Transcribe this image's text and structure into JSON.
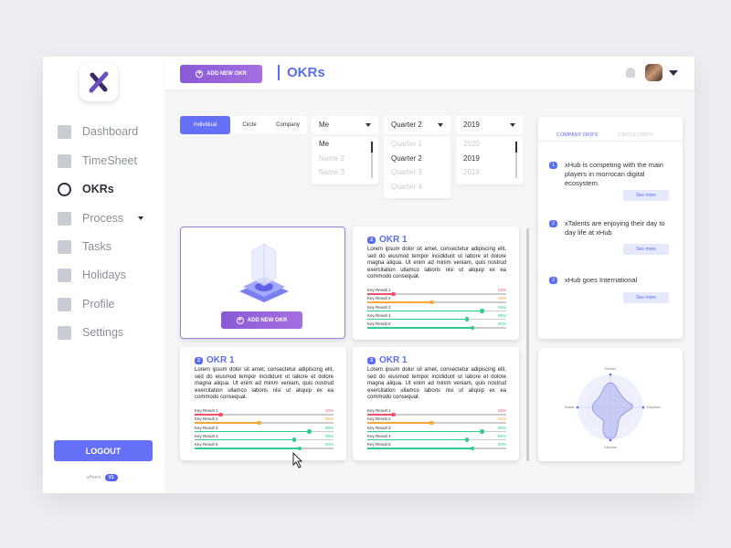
{
  "sidebar": {
    "items": [
      {
        "label": "Dashboard",
        "icon": "dashboard-icon"
      },
      {
        "label": "TimeSheet",
        "icon": "timesheet-icon"
      },
      {
        "label": "OKRs",
        "icon": "target-icon",
        "active": true
      },
      {
        "label": "Process",
        "icon": "process-icon",
        "has_caret": true
      },
      {
        "label": "Tasks",
        "icon": "tasks-icon"
      },
      {
        "label": "Holidays",
        "icon": "coffee-icon"
      },
      {
        "label": "Profile",
        "icon": "user-icon"
      },
      {
        "label": "Settings",
        "icon": "gear-icon"
      }
    ],
    "logout": "LOGOUT",
    "brand": "xPeers",
    "version": "V1"
  },
  "header": {
    "add_button": "ADD NEW OKR",
    "title": "OKRs"
  },
  "filters": {
    "segments": [
      "Individual",
      "Circle",
      "Company"
    ],
    "active_segment": "Individual",
    "person": {
      "value": "Me",
      "options": [
        "Me",
        "Name 2",
        "Name 3"
      ]
    },
    "quarter": {
      "value": "Quarter 2",
      "options": [
        "Quarter 1",
        "Quarter 2",
        "Quarter 3",
        "Quarter 4"
      ]
    },
    "year": {
      "value": "2019",
      "options": [
        "2020",
        "2019",
        "2018"
      ]
    }
  },
  "add_card": {
    "button": "ADD NEW OKR"
  },
  "okr_cards": [
    {
      "badge": "3",
      "title": "OKR 1"
    },
    {
      "badge": "2",
      "title": "OKR 1"
    },
    {
      "badge": "3",
      "title": "OKR 1"
    }
  ],
  "lorem": "Lorem ipsum dolor sit amet, consectetur adipiscing elit, sed do eiusmod tempor incididunt ut labore et dolore magna aliqua. Ut enim ad minim veniam, quis nostrud exercitation ullamco laboris nisi ut aliquip ex ea commodo consequat.",
  "key_results": [
    {
      "label": "Key Result 1",
      "value": 22,
      "pct": "22%",
      "color": "#f0506e"
    },
    {
      "label": "Key Result 2",
      "value": 55,
      "pct": "55%",
      "color": "#f7a738"
    },
    {
      "label": "Key Result 3",
      "value": 98,
      "pct": "98%",
      "color": "#2ecc8f"
    },
    {
      "label": "Key Result 4",
      "value": 85,
      "pct": "85%",
      "color": "#2ecc8f"
    },
    {
      "label": "Key Result 5",
      "value": 90,
      "pct": "90%",
      "color": "#2ecc8f"
    }
  ],
  "panel": {
    "tabs": [
      "COMPANY OKR'S",
      "CIRCLE OKR'S"
    ],
    "items": [
      {
        "n": "1",
        "text": "xHub is competing with the main players in morrocan digital ecosystem.",
        "button": "See more"
      },
      {
        "n": "2",
        "text": "xTalents are enjoying their day to day life at xHub",
        "button": "See more"
      },
      {
        "n": "3",
        "text": "xHub goes International",
        "button": "See more"
      }
    ]
  },
  "radar": {
    "labels": [
      "Firefox",
      "Explorer",
      "Chrome",
      "Safari"
    ]
  },
  "colors": {
    "accent": "#5b6df2",
    "button": "#6470f5"
  }
}
